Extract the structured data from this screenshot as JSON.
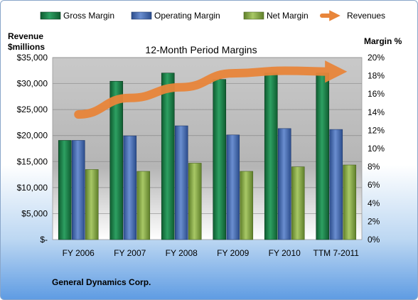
{
  "chart_data": {
    "type": "bar",
    "title": "12-Month Period Margins",
    "left_axis_label_line1": "Revenue",
    "left_axis_label_line2": "$millions",
    "right_axis_label": "Margin %",
    "company": "General Dynamics Corp.",
    "categories": [
      "FY 2006",
      "FY 2007",
      "FY 2008",
      "FY 2009",
      "FY 2010",
      "TTM 7-2011"
    ],
    "series": [
      {
        "name": "Gross Margin",
        "type": "bar",
        "axis": "right",
        "color": "#1f8a4c",
        "values": [
          10.9,
          17.4,
          18.3,
          17.6,
          18.3,
          18.3
        ]
      },
      {
        "name": "Operating Margin",
        "type": "bar",
        "axis": "right",
        "color": "#4a6fb5",
        "values": [
          10.9,
          11.4,
          12.5,
          11.5,
          12.2,
          12.1
        ]
      },
      {
        "name": "Net Margin",
        "type": "bar",
        "axis": "right",
        "color": "#8fb24a",
        "values": [
          7.7,
          7.5,
          8.4,
          7.5,
          8.0,
          8.2
        ]
      },
      {
        "name": "Revenues",
        "type": "line",
        "axis": "left",
        "color": "#e8853a",
        "values": [
          24063,
          27240,
          29300,
          31981,
          32466,
          32300
        ]
      }
    ],
    "left_axis": {
      "min": 0,
      "max": 35000,
      "step": 5000,
      "tick_labels": [
        "$-",
        "$5,000",
        "$10,000",
        "$15,000",
        "$20,000",
        "$25,000",
        "$30,000",
        "$35,000"
      ]
    },
    "right_axis": {
      "min": 0,
      "max": 20,
      "step": 2,
      "tick_labels": [
        "0%",
        "2%",
        "4%",
        "6%",
        "8%",
        "10%",
        "12%",
        "14%",
        "16%",
        "18%",
        "20%"
      ]
    },
    "legend_position": "top",
    "grid": true
  }
}
